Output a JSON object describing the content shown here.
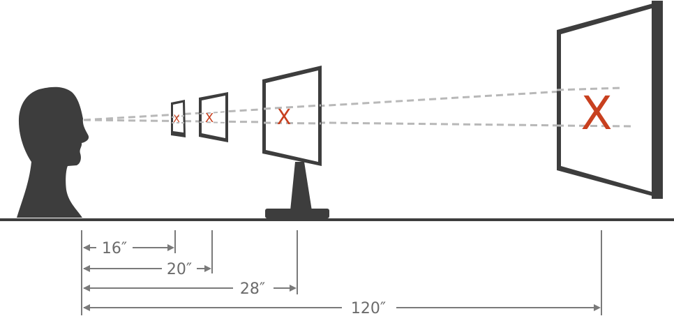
{
  "colors": {
    "silhouette": "#3d3d3d",
    "screen_frame": "#3d3d3d",
    "sight_line": "#b8b8b8",
    "target_mark": "#c8401f",
    "dimension": "#7a7a7a"
  },
  "target_mark": "X",
  "distances": [
    {
      "label": "16″",
      "value_in": 16,
      "device": "phone"
    },
    {
      "label": "20″",
      "value_in": 20,
      "device": "tablet"
    },
    {
      "label": "28″",
      "value_in": 28,
      "device": "desktop-monitor"
    },
    {
      "label": "120″",
      "value_in": 120,
      "device": "tv-screen"
    }
  ]
}
